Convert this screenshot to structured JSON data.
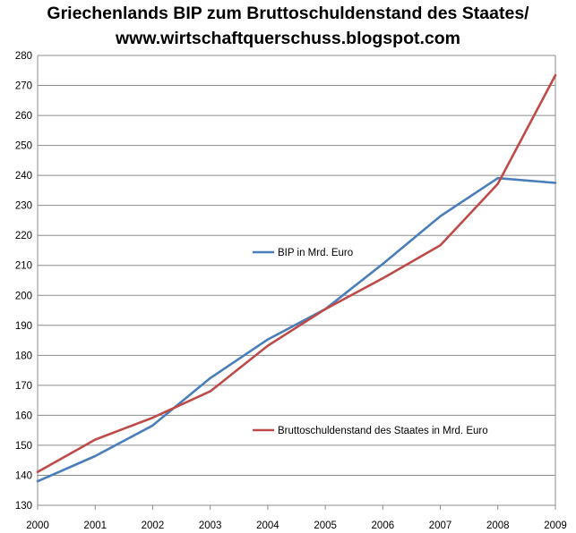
{
  "chart_data": {
    "type": "line",
    "title_lines": [
      "Griechenlands BIP zum Bruttoschuldenstand des Staates/",
      "www.wirtschaftquerschuss.blogspot.com"
    ],
    "xlabel": "",
    "ylabel": "",
    "x": [
      "2000",
      "2001",
      "2002",
      "2003",
      "2004",
      "2005",
      "2006",
      "2007",
      "2008",
      "2009"
    ],
    "ylim": [
      130,
      280
    ],
    "yticks": [
      130,
      140,
      150,
      160,
      170,
      180,
      190,
      200,
      210,
      220,
      230,
      240,
      250,
      260,
      270,
      280
    ],
    "grid": true,
    "series": [
      {
        "name": "BIP in Mrd. Euro",
        "color": "#4a7ebb",
        "values": [
          138.0,
          146.4,
          156.6,
          172.4,
          185.3,
          195.4,
          210.5,
          226.4,
          239.1,
          237.5
        ]
      },
      {
        "name": "Bruttoschuldenstand des Staates  in Mrd. Euro",
        "color": "#be4b48",
        "values": [
          141.1,
          151.9,
          159.2,
          168.0,
          183.2,
          195.4,
          205.7,
          216.7,
          237.2,
          273.4
        ]
      }
    ]
  }
}
